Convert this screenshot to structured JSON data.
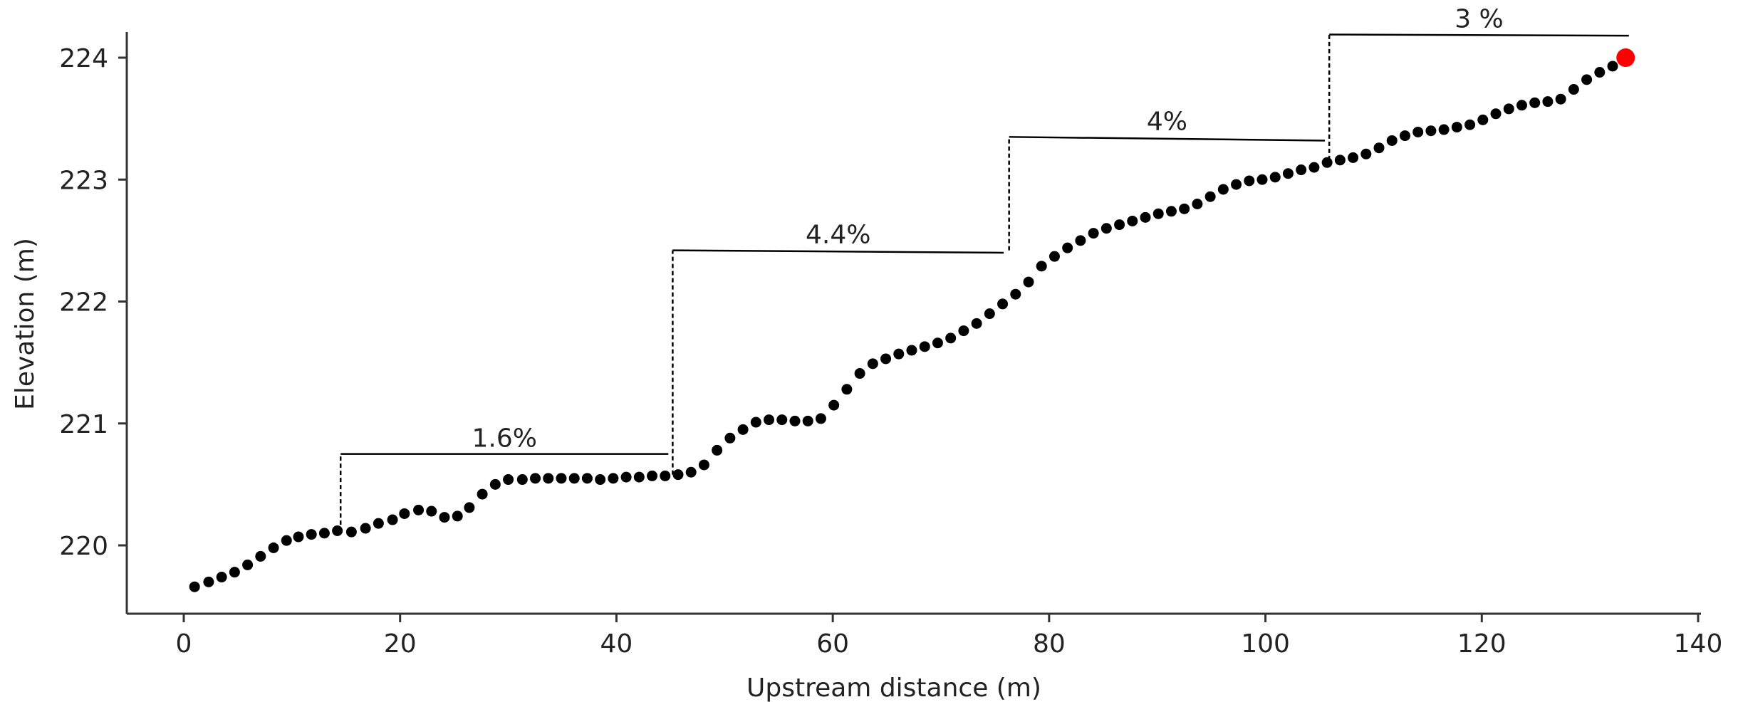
{
  "chart_data": {
    "type": "scatter",
    "title": "",
    "xlabel": "Upstream distance (m)",
    "ylabel": "Elevation (m)",
    "xlim": [
      -5,
      140
    ],
    "ylim": [
      219.4,
      224.4
    ],
    "xticks": [
      "0",
      "20",
      "40",
      "60",
      "80",
      "100",
      "120",
      "140"
    ],
    "yticks": [
      "220",
      "221",
      "222",
      "223",
      "224"
    ],
    "grid": false,
    "legend": "none",
    "colors": {
      "points": "#000000",
      "highlight": "#ff0000",
      "segments": "#000000"
    },
    "series": [
      {
        "x": [
          1,
          2.3,
          3.5,
          4.7,
          5.9,
          7.1,
          8.3,
          9.5,
          10.6,
          11.8,
          13,
          14.2,
          15.5,
          16.8,
          18,
          19.3,
          20.4,
          21.7,
          22.9,
          24.1,
          25.3,
          26.4,
          27.6,
          28.8,
          30,
          31.3,
          32.5,
          33.7,
          34.9,
          36.1,
          37.3,
          38.5,
          39.7,
          40.9,
          42.1,
          43.3,
          44.5,
          45.7,
          46.9,
          48.1,
          49.3,
          50.5,
          51.7,
          52.9,
          54.1,
          55.3,
          56.5,
          57.7,
          58.9,
          60.1,
          61.3,
          62.5,
          63.7,
          64.9,
          66.1,
          67.3,
          68.5,
          69.7,
          70.9,
          72.1,
          73.3,
          74.5,
          75.7,
          76.9,
          78.1,
          79.3,
          80.5,
          81.7,
          82.9,
          84.1,
          85.3,
          86.5,
          87.7,
          88.9,
          90.1,
          91.3,
          92.5,
          93.7,
          94.9,
          96.1,
          97.3,
          98.5,
          99.7,
          100.9,
          102.1,
          103.3,
          104.5,
          105.7,
          106.9,
          108.1,
          109.3,
          110.5,
          111.7,
          112.9,
          114.1,
          115.3,
          116.5,
          117.7,
          118.9,
          120.1,
          121.3,
          122.5,
          123.7,
          124.9,
          126.1,
          127.3,
          128.5,
          129.7,
          130.9,
          132.1
        ],
        "y": [
          219.66,
          219.7,
          219.74,
          219.78,
          219.84,
          219.91,
          219.98,
          220.04,
          220.07,
          220.09,
          220.1,
          220.12,
          220.11,
          220.14,
          220.18,
          220.21,
          220.26,
          220.29,
          220.28,
          220.23,
          220.24,
          220.31,
          220.42,
          220.5,
          220.54,
          220.54,
          220.55,
          220.55,
          220.55,
          220.55,
          220.55,
          220.54,
          220.55,
          220.56,
          220.56,
          220.57,
          220.57,
          220.58,
          220.6,
          220.66,
          220.78,
          220.88,
          220.95,
          221.01,
          221.03,
          221.03,
          221.02,
          221.02,
          221.04,
          221.15,
          221.28,
          221.41,
          221.49,
          221.53,
          221.57,
          221.6,
          221.63,
          221.66,
          221.7,
          221.76,
          221.82,
          221.9,
          221.98,
          222.06,
          222.16,
          222.29,
          222.37,
          222.44,
          222.5,
          222.56,
          222.6,
          222.63,
          222.66,
          222.69,
          222.72,
          222.74,
          222.76,
          222.8,
          222.86,
          222.92,
          222.96,
          222.99,
          223.0,
          223.02,
          223.05,
          223.08,
          223.1,
          223.14,
          223.16,
          223.18,
          223.21,
          223.26,
          223.32,
          223.36,
          223.39,
          223.4,
          223.41,
          223.43,
          223.45,
          223.49,
          223.54,
          223.58,
          223.61,
          223.63,
          223.64,
          223.66,
          223.74,
          223.82,
          223.88,
          223.93
        ]
      }
    ],
    "highlight_point": {
      "x": 133.3,
      "y": 224.0
    },
    "segments": [
      {
        "x": [
          14.5,
          44.8
        ],
        "y": [
          220.75,
          220.75
        ],
        "step_from_y": 220.11,
        "label": "1.6%"
      },
      {
        "x": [
          45.2,
          75.8
        ],
        "y": [
          222.42,
          222.4
        ],
        "step_from_y": 220.58,
        "label": "4.4%"
      },
      {
        "x": [
          76.3,
          105.5
        ],
        "y": [
          223.35,
          223.32
        ],
        "step_from_y": 222.42,
        "label": "4%"
      },
      {
        "x": [
          105.9,
          133.6
        ],
        "y": [
          224.19,
          224.18
        ],
        "step_from_y": 223.16,
        "label": "3 %"
      }
    ]
  }
}
